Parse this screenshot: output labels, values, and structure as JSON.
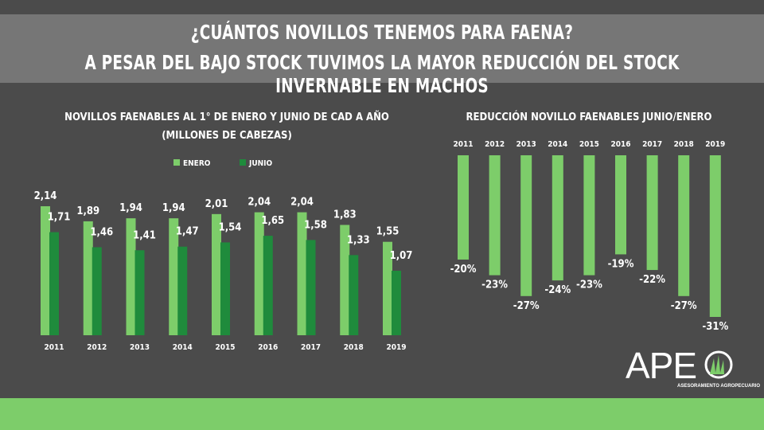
{
  "header": {
    "line1": "¿CUÁNTOS NOVILLOS TENEMOS PARA FAENA?",
    "line2": "A PESAR DEL BAJO STOCK TUVIMOS LA MAYOR REDUCCIÓN DEL STOCK INVERNABLE EN MACHOS"
  },
  "colors": {
    "enero": "#7dcd6a",
    "junio": "#1f8b3c",
    "background": "#4b4b4b",
    "band": "#767676",
    "accent": "#7dcd6a"
  },
  "logo": {
    "text": "APE",
    "subtext": "ASESORAMIENTO AGROPECUARIO",
    "icon": "grass-circle-icon"
  },
  "chart_data": [
    {
      "type": "bar",
      "title": "NOVILLOS FAENABLES AL 1° DE ENERO Y JUNIO DE CAD A AÑO",
      "subtitle": "(MILLONES DE CABEZAS)",
      "categories": [
        "2011",
        "2012",
        "2013",
        "2014",
        "2015",
        "2016",
        "2017",
        "2018",
        "2019"
      ],
      "series": [
        {
          "name": "ENERO",
          "values": [
            2.14,
            1.89,
            1.94,
            1.94,
            2.01,
            2.04,
            2.04,
            1.83,
            1.55
          ],
          "labels": [
            "2,14",
            "1,89",
            "1,94",
            "1,94",
            "2,01",
            "2,04",
            "2,04",
            "1,83",
            "1,55"
          ]
        },
        {
          "name": "JUNIO",
          "values": [
            1.71,
            1.46,
            1.41,
            1.47,
            1.54,
            1.65,
            1.58,
            1.33,
            1.07
          ],
          "labels": [
            "1,71",
            "1,46",
            "1,41",
            "1,47",
            "1,54",
            "1,65",
            "1,58",
            "1,33",
            "1,07"
          ]
        }
      ],
      "ylim": [
        0,
        2.14
      ],
      "legend": "top",
      "grid": false
    },
    {
      "type": "bar",
      "title": "REDUCCIÓN NOVILLO FAENABLES JUNIO/ENERO",
      "categories": [
        "2011",
        "2012",
        "2013",
        "2014",
        "2015",
        "2016",
        "2017",
        "2018",
        "2019"
      ],
      "values": [
        -20,
        -23,
        -27,
        -24,
        -23,
        -19,
        -22,
        -27,
        -31
      ],
      "labels": [
        "-20%",
        "-23%",
        "-27%",
        "-24%",
        "-23%",
        "-19%",
        "-22%",
        "-27%",
        "-31%"
      ],
      "ylim": [
        -31,
        0
      ],
      "grid": false
    }
  ]
}
